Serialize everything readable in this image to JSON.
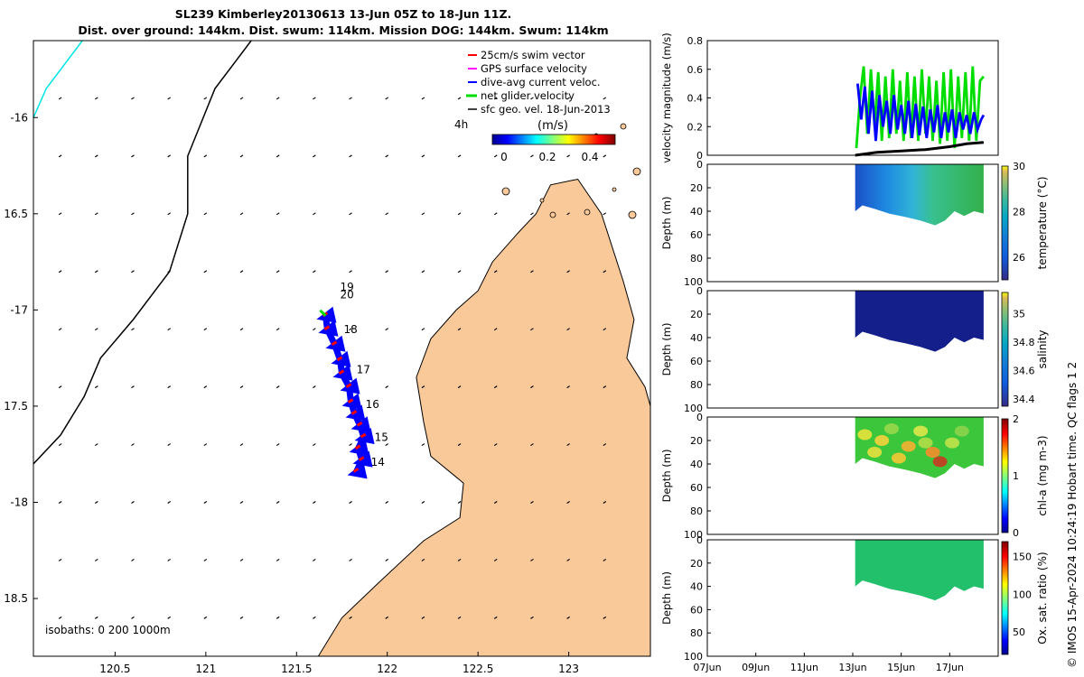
{
  "header": {
    "title_line1": "SL239 Kimberley20130613 13-Jun 05Z to 18-Jun 11Z.",
    "title_line2": "Dist. over ground: 144km. Dist. swum: 114km. Mission DOG: 144km. Swum: 114km"
  },
  "credit": "© IMOS 15-Apr-2024 10:24:19 Hobart time. QC flags 1  2",
  "colors": {
    "land": "#f9c999",
    "track": "#0000ff",
    "swim": "#ff0000",
    "net": "#00dd00",
    "surface": "#ff00ff",
    "geo": "#000000",
    "isobath": "#000000",
    "coast_line": "#00e5e5"
  },
  "chart_data": [
    {
      "type": "scatter",
      "name": "map",
      "xlabel": "",
      "ylabel": "",
      "xlim": [
        120.05,
        123.45
      ],
      "ylim": [
        -18.8,
        -15.6
      ],
      "x_ticks": [
        {
          "v": 120.5,
          "label": "120.5"
        },
        {
          "v": 121,
          "label": "121"
        },
        {
          "v": 121.5,
          "label": "121.5"
        },
        {
          "v": 122,
          "label": "122"
        },
        {
          "v": 122.5,
          "label": "122.5"
        },
        {
          "v": 123,
          "label": "123"
        }
      ],
      "y_ticks": [
        {
          "v": -16,
          "label": "-16"
        },
        {
          "v": -16.5,
          "label": "16.5"
        },
        {
          "v": -17,
          "label": "-17"
        },
        {
          "v": -17.5,
          "label": "17.5"
        },
        {
          "v": -18,
          "label": "-18"
        },
        {
          "v": -18.5,
          "label": "18.5"
        }
      ],
      "legend": {
        "placement": "top-right",
        "entries": [
          {
            "label": "25cm/s swim vector",
            "color": "#ff0000"
          },
          {
            "label": "GPS surface velocity",
            "color": "#ff00ff"
          },
          {
            "label": "dive-avg current veloc.",
            "color": "#0000ff"
          },
          {
            "label": "net glider velocity",
            "color": "#00dd00"
          },
          {
            "label": "sfc geo. vel. 18-Jun-2013",
            "color": "#000000"
          }
        ]
      },
      "colorbar": {
        "label": "(m/s)",
        "age_label": "4h",
        "ticks": [
          "0",
          "0.2",
          "0.4"
        ],
        "range": [
          0,
          0.5
        ]
      },
      "isobath_label": "isobaths: 0   200   1000m",
      "day_labels": [
        {
          "label": "19",
          "lon": 121.74,
          "lat": -16.9
        },
        {
          "label": "20",
          "lon": 121.74,
          "lat": -16.94
        },
        {
          "label": "18",
          "lon": 121.76,
          "lat": -17.12
        },
        {
          "label": "17",
          "lon": 121.83,
          "lat": -17.33
        },
        {
          "label": "16",
          "lon": 121.88,
          "lat": -17.51
        },
        {
          "label": "15",
          "lon": 121.93,
          "lat": -17.68
        },
        {
          "label": "14",
          "lon": 121.91,
          "lat": -17.81
        }
      ],
      "track": [
        {
          "lon": 121.83,
          "lat": -17.84
        },
        {
          "lon": 121.86,
          "lat": -17.78
        },
        {
          "lon": 121.84,
          "lat": -17.72
        },
        {
          "lon": 121.87,
          "lat": -17.66
        },
        {
          "lon": 121.85,
          "lat": -17.6
        },
        {
          "lon": 121.82,
          "lat": -17.54
        },
        {
          "lon": 121.8,
          "lat": -17.48
        },
        {
          "lon": 121.79,
          "lat": -17.4
        },
        {
          "lon": 121.75,
          "lat": -17.33
        },
        {
          "lon": 121.74,
          "lat": -17.26
        },
        {
          "lon": 121.71,
          "lat": -17.18
        },
        {
          "lon": 121.67,
          "lat": -17.1
        },
        {
          "lon": 121.66,
          "lat": -17.03
        }
      ],
      "coastline": [
        {
          "lon": 123.45,
          "lat": -15.6
        },
        {
          "lon": 123.45,
          "lat": -18.8
        },
        {
          "lon": 121.62,
          "lat": -18.8
        },
        {
          "lon": 121.75,
          "lat": -18.6
        },
        {
          "lon": 121.95,
          "lat": -18.42
        },
        {
          "lon": 122.2,
          "lat": -18.2
        },
        {
          "lon": 122.4,
          "lat": -18.08
        },
        {
          "lon": 122.42,
          "lat": -17.9
        },
        {
          "lon": 122.24,
          "lat": -17.76
        },
        {
          "lon": 122.2,
          "lat": -17.58
        },
        {
          "lon": 122.16,
          "lat": -17.35
        },
        {
          "lon": 122.24,
          "lat": -17.15
        },
        {
          "lon": 122.38,
          "lat": -17.0
        },
        {
          "lon": 122.5,
          "lat": -16.9
        },
        {
          "lon": 122.58,
          "lat": -16.75
        },
        {
          "lon": 122.72,
          "lat": -16.6
        },
        {
          "lon": 122.82,
          "lat": -16.5
        },
        {
          "lon": 122.9,
          "lat": -16.35
        },
        {
          "lon": 123.05,
          "lat": -16.32
        },
        {
          "lon": 123.18,
          "lat": -16.5
        },
        {
          "lon": 123.3,
          "lat": -16.85
        },
        {
          "lon": 123.36,
          "lat": -17.05
        },
        {
          "lon": 123.32,
          "lat": -17.25
        },
        {
          "lon": 123.42,
          "lat": -17.4
        },
        {
          "lon": 123.45,
          "lat": -17.5
        }
      ],
      "isobath_200": [
        {
          "lon": 120.32,
          "lat": -15.6
        },
        {
          "lon": 120.12,
          "lat": -15.85
        },
        {
          "lon": 120.05,
          "lat": -16.0
        }
      ],
      "isobath_1000": [
        {
          "lon": 121.25,
          "lat": -15.6
        },
        {
          "lon": 121.05,
          "lat": -15.85
        },
        {
          "lon": 120.9,
          "lat": -16.2
        },
        {
          "lon": 120.9,
          "lat": -16.5
        },
        {
          "lon": 120.8,
          "lat": -16.8
        },
        {
          "lon": 120.6,
          "lat": -17.05
        },
        {
          "lon": 120.42,
          "lat": -17.25
        },
        {
          "lon": 120.33,
          "lat": -17.45
        },
        {
          "lon": 120.2,
          "lat": -17.65
        },
        {
          "lon": 120.05,
          "lat": -17.8
        }
      ]
    },
    {
      "type": "line",
      "name": "velocity",
      "ylabel": "velocity magnitude (m/s)",
      "ylim": [
        0,
        0.8
      ],
      "y_ticks": [
        "0",
        "0.2",
        "0.4",
        "0.6",
        "0.8"
      ],
      "xlim": [
        0,
        12
      ],
      "series": [
        {
          "color": "#00dd00",
          "x": [
            6.15,
            6.3,
            6.45,
            6.6,
            6.75,
            6.9,
            7.05,
            7.2,
            7.35,
            7.5,
            7.65,
            7.8,
            7.95,
            8.1,
            8.25,
            8.4,
            8.55,
            8.7,
            8.85,
            9.0,
            9.15,
            9.3,
            9.45,
            9.6,
            9.75,
            9.9,
            10.05,
            10.2,
            10.35,
            10.5,
            10.65,
            10.8,
            10.95,
            11.1,
            11.25,
            11.4
          ],
          "y": [
            0.05,
            0.4,
            0.62,
            0.15,
            0.6,
            0.2,
            0.58,
            0.1,
            0.55,
            0.12,
            0.6,
            0.15,
            0.52,
            0.1,
            0.58,
            0.12,
            0.55,
            0.1,
            0.6,
            0.15,
            0.55,
            0.1,
            0.52,
            0.08,
            0.58,
            0.1,
            0.6,
            0.05,
            0.55,
            0.12,
            0.58,
            0.1,
            0.62,
            0.1,
            0.52,
            0.55
          ]
        },
        {
          "color": "#0000ff",
          "x": [
            6.2,
            6.35,
            6.5,
            6.65,
            6.8,
            6.95,
            7.1,
            7.25,
            7.4,
            7.55,
            7.7,
            7.85,
            8.0,
            8.15,
            8.3,
            8.45,
            8.6,
            8.75,
            8.9,
            9.05,
            9.2,
            9.35,
            9.5,
            9.65,
            9.8,
            9.95,
            10.1,
            10.25,
            10.4,
            10.55,
            10.7,
            10.85,
            11.0,
            11.15,
            11.3,
            11.4
          ],
          "y": [
            0.5,
            0.25,
            0.48,
            0.15,
            0.45,
            0.1,
            0.42,
            0.2,
            0.38,
            0.15,
            0.42,
            0.18,
            0.35,
            0.15,
            0.38,
            0.12,
            0.36,
            0.14,
            0.34,
            0.12,
            0.32,
            0.16,
            0.35,
            0.12,
            0.3,
            0.16,
            0.32,
            0.12,
            0.3,
            0.18,
            0.28,
            0.15,
            0.3,
            0.18,
            0.25,
            0.28
          ]
        },
        {
          "color": "#000000",
          "x": [
            6.1,
            7.0,
            8.0,
            9.0,
            10.0,
            10.7,
            11.4
          ],
          "y": [
            0.0,
            0.02,
            0.03,
            0.04,
            0.06,
            0.08,
            0.09
          ]
        }
      ]
    },
    {
      "type": "heatmap",
      "name": "temperature",
      "ylabel": "Depth (m)",
      "clabel": "temperature (°C)",
      "ylim": [
        0,
        100
      ],
      "y_ticks": [
        "0",
        "20",
        "40",
        "60",
        "80",
        "100"
      ],
      "cticks": [
        "26",
        "28",
        "30"
      ],
      "crange": [
        25,
        30
      ],
      "xlim": [
        0,
        12
      ],
      "x": [
        6.1,
        11.4
      ],
      "bottom_depths": [
        [
          6.1,
          40
        ],
        [
          6.4,
          35
        ],
        [
          6.9,
          38
        ],
        [
          7.5,
          42
        ],
        [
          8.2,
          45
        ],
        [
          8.8,
          48
        ],
        [
          9.4,
          52
        ],
        [
          9.8,
          48
        ],
        [
          10.2,
          40
        ],
        [
          10.6,
          44
        ],
        [
          11.0,
          40
        ],
        [
          11.4,
          42
        ]
      ],
      "values_start": 26.5,
      "values_end": 28.2
    },
    {
      "type": "heatmap",
      "name": "salinity",
      "ylabel": "Depth (m)",
      "clabel": "salinity",
      "ylim": [
        0,
        100
      ],
      "y_ticks": [
        "0",
        "20",
        "40",
        "60",
        "80",
        "100"
      ],
      "cticks": [
        "34.4",
        "34.6",
        "34.8",
        "35"
      ],
      "crange": [
        34.35,
        35.15
      ],
      "xlim": [
        0,
        12
      ],
      "x": [
        6.1,
        11.4
      ],
      "bottom_depths": [
        [
          6.1,
          40
        ],
        [
          6.4,
          35
        ],
        [
          6.9,
          38
        ],
        [
          7.5,
          42
        ],
        [
          8.2,
          45
        ],
        [
          8.8,
          48
        ],
        [
          9.4,
          52
        ],
        [
          9.8,
          48
        ],
        [
          10.2,
          40
        ],
        [
          10.6,
          44
        ],
        [
          11.0,
          40
        ],
        [
          11.4,
          42
        ]
      ],
      "values_start": 34.45,
      "values_end": 34.45
    },
    {
      "type": "heatmap",
      "name": "chl",
      "ylabel": "Depth (m)",
      "clabel": "chl-a (mg m-3)",
      "ylim": [
        0,
        100
      ],
      "y_ticks": [
        "0",
        "20",
        "40",
        "60",
        "80",
        "100"
      ],
      "cticks": [
        "0",
        "1",
        "2"
      ],
      "crange": [
        0,
        2
      ],
      "xlim": [
        0,
        12
      ],
      "x": [
        6.1,
        11.4
      ],
      "bottom_depths": [
        [
          6.1,
          40
        ],
        [
          6.4,
          35
        ],
        [
          6.9,
          38
        ],
        [
          7.5,
          42
        ],
        [
          8.2,
          45
        ],
        [
          8.8,
          48
        ],
        [
          9.4,
          52
        ],
        [
          9.8,
          48
        ],
        [
          10.2,
          40
        ],
        [
          10.6,
          44
        ],
        [
          11.0,
          40
        ],
        [
          11.4,
          42
        ]
      ],
      "values_start": 1.2,
      "values_end": 1.2
    },
    {
      "type": "heatmap",
      "name": "oxygen",
      "ylabel": "Depth (m)",
      "clabel": "Ox. sat. ratio (%)",
      "ylim": [
        0,
        100
      ],
      "y_ticks": [
        "0",
        "20",
        "40",
        "60",
        "80",
        "100"
      ],
      "cticks": [
        "50",
        "100",
        "150"
      ],
      "crange": [
        20,
        170
      ],
      "xlim": [
        0,
        12
      ],
      "x": [
        6.1,
        11.4
      ],
      "x_ticks": [
        {
          "v": 0,
          "label": "07Jun"
        },
        {
          "v": 2,
          "label": "09Jun"
        },
        {
          "v": 4,
          "label": "11Jun"
        },
        {
          "v": 6,
          "label": "13Jun"
        },
        {
          "v": 8,
          "label": "15Jun"
        },
        {
          "v": 10,
          "label": "17Jun"
        }
      ],
      "bottom_depths": [
        [
          6.1,
          40
        ],
        [
          6.4,
          35
        ],
        [
          6.9,
          38
        ],
        [
          7.5,
          42
        ],
        [
          8.2,
          45
        ],
        [
          8.8,
          48
        ],
        [
          9.4,
          52
        ],
        [
          9.8,
          48
        ],
        [
          10.2,
          40
        ],
        [
          10.6,
          44
        ],
        [
          11.0,
          40
        ],
        [
          11.4,
          42
        ]
      ],
      "values_start": 105,
      "values_end": 105
    }
  ]
}
